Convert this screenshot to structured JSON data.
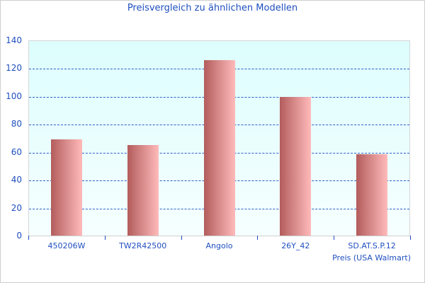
{
  "chart_data": {
    "type": "bar",
    "title": "Preisvergleich zu ähnlichen Modellen",
    "xlabel": "Preis (USA Walmart)",
    "ylabel": "",
    "categories": [
      "450206W",
      "TW2R42500",
      "Angolo",
      "26Y_42",
      "SD.AT.S.P.12"
    ],
    "values": [
      69,
      65,
      126,
      99.5,
      58.5
    ],
    "ylim": [
      0,
      140
    ],
    "yticks": [
      0,
      20,
      40,
      60,
      80,
      100,
      120,
      140
    ],
    "grid": true,
    "legend": null,
    "colors": {
      "bar_dark": "#b35c5c",
      "bar_light": "#ffbaba",
      "text": "#1f4fbf",
      "grid": "#2e5fc7",
      "plot_bg_top": "#ddfdfd"
    }
  },
  "labels": {
    "title": "Preisvergleich zu ähnlichen Modellen",
    "xaxis_title": "Preis (USA Walmart)",
    "yticks": [
      "0",
      "20",
      "40",
      "60",
      "80",
      "100",
      "120",
      "140"
    ],
    "categories": [
      "450206W",
      "TW2R42500",
      "Angolo",
      "26Y_42",
      "SD.AT.S.P.12"
    ]
  }
}
